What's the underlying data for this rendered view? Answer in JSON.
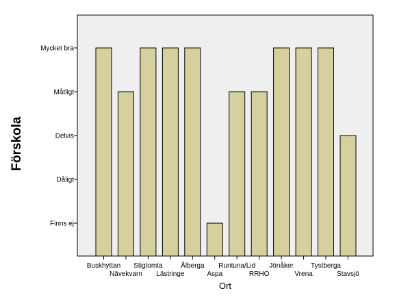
{
  "chart_data": {
    "type": "bar",
    "title": "",
    "xlabel": "Ort",
    "ylabel": "Förskola",
    "y_categories": [
      "Finns ej",
      "Dåligt",
      "Delvis",
      "Måtligt",
      "Mycket bra"
    ],
    "categories": [
      "Buskhyttan",
      "Nävekvarn",
      "Stigtomta",
      "Lästringe",
      "Ålberga",
      "Aspa",
      "Runtuna/Lid",
      "RRHO",
      "Jönåker",
      "Vrena",
      "Tystberga",
      "Stavsjö"
    ],
    "values": [
      5,
      4,
      5,
      5,
      5,
      1,
      4,
      4,
      5,
      5,
      5,
      3
    ],
    "ylim": [
      0.25,
      5.75
    ],
    "legend": "none",
    "grid": false,
    "colors": {
      "plot_background": "#efefef",
      "bar_fill": "#d6d09e",
      "bar_stroke": "#000000"
    }
  }
}
